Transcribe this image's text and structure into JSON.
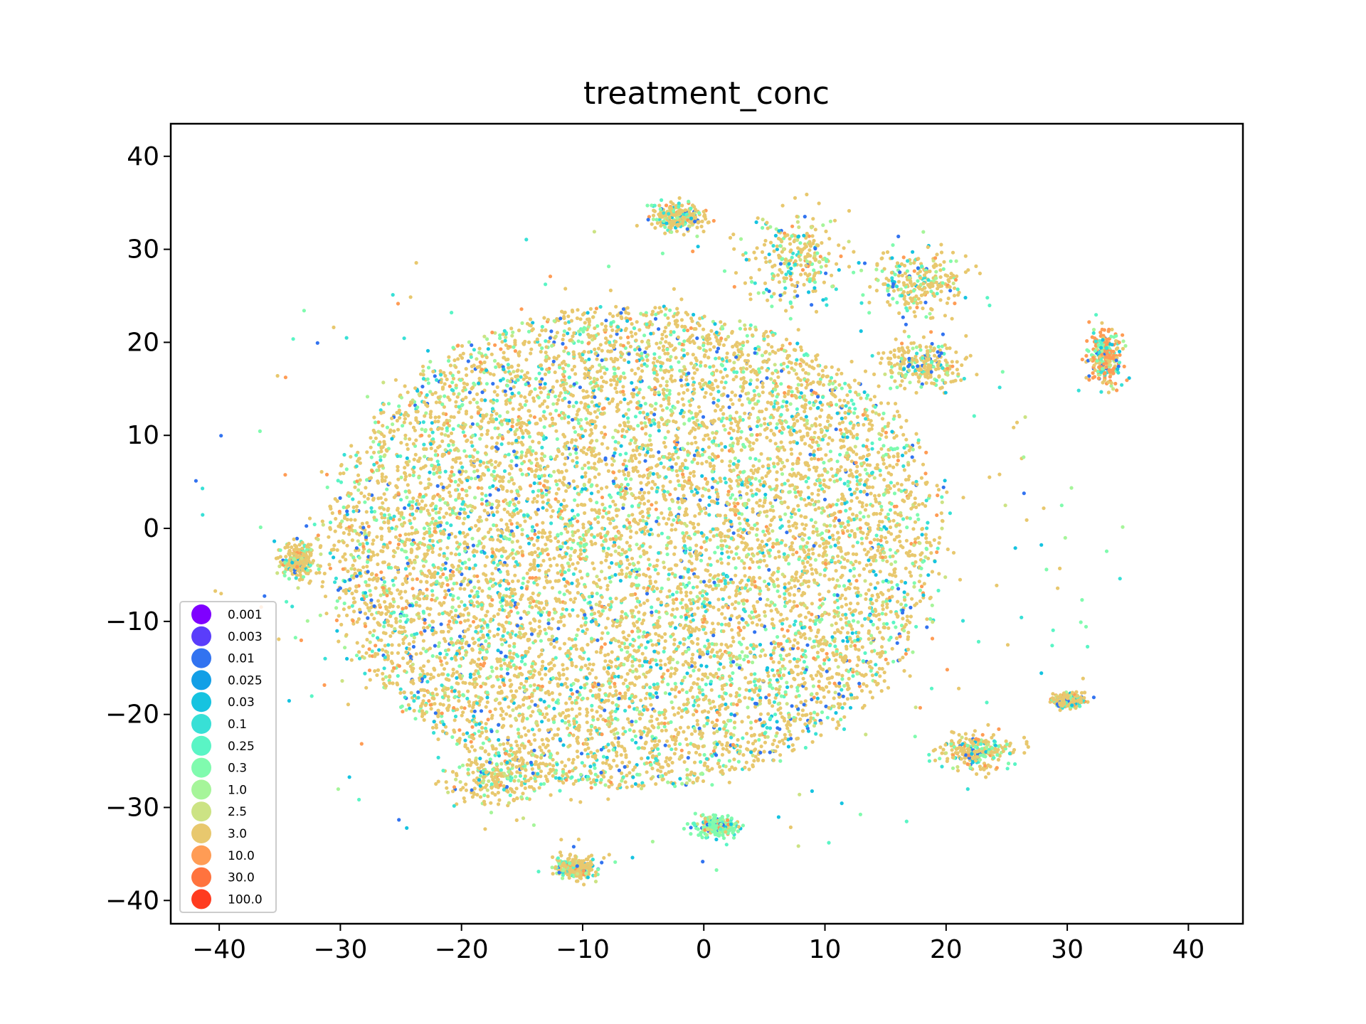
{
  "chart_data": {
    "type": "scatter",
    "title": "treatment_conc",
    "xlabel": "",
    "ylabel": "",
    "xlim": [
      -44,
      44.5
    ],
    "ylim": [
      -42.5,
      43.5
    ],
    "x_ticks": [
      -40,
      -30,
      -20,
      -10,
      0,
      10,
      20,
      30,
      40
    ],
    "y_ticks": [
      -40,
      -30,
      -20,
      -10,
      0,
      10,
      20,
      30,
      40
    ],
    "x_tick_labels": [
      "−40",
      "−30",
      "−20",
      "−10",
      "0",
      "10",
      "20",
      "30",
      "40"
    ],
    "y_tick_labels": [
      "−40",
      "−30",
      "−20",
      "−10",
      "0",
      "10",
      "20",
      "30",
      "40"
    ],
    "grid": false,
    "legend_position": "lower-left",
    "legend": [
      {
        "label": "0.001",
        "color": "#7f00ff"
      },
      {
        "label": "0.003",
        "color": "#5a3dfb"
      },
      {
        "label": "0.01",
        "color": "#3273f0"
      },
      {
        "label": "0.025",
        "color": "#139fe6"
      },
      {
        "label": "0.03",
        "color": "#16c3e0"
      },
      {
        "label": "0.1",
        "color": "#38e0d6"
      },
      {
        "label": "0.25",
        "color": "#5af5c5"
      },
      {
        "label": "0.3",
        "color": "#80fbae"
      },
      {
        "label": "1.0",
        "color": "#a6f59a"
      },
      {
        "label": "2.5",
        "color": "#cce384"
      },
      {
        "label": "3.0",
        "color": "#e8c86e"
      },
      {
        "label": "10.0",
        "color": "#ff9c55"
      },
      {
        "label": "30.0",
        "color": "#ff733e"
      },
      {
        "label": "100.0",
        "color": "#ff3b1f"
      }
    ],
    "clusters": [
      {
        "center": [
          -6,
          -2
        ],
        "spread": [
          11,
          12
        ],
        "dominant": "3.0",
        "note": "main body"
      },
      {
        "center": [
          7.5,
          29
        ],
        "spread": [
          2,
          2.5
        ],
        "dominant": "3.0"
      },
      {
        "center": [
          17.5,
          26.5
        ],
        "spread": [
          2.2,
          1.6
        ],
        "dominant": "3.0"
      },
      {
        "center": [
          -2,
          33.5
        ],
        "spread": [
          1.1,
          0.7
        ],
        "dominant": "3.0"
      },
      {
        "center": [
          33.2,
          18.5
        ],
        "spread": [
          0.7,
          1.6
        ],
        "dominant": "10.0"
      },
      {
        "center": [
          -17,
          -27
        ],
        "spread": [
          2.2,
          1.5
        ],
        "dominant": "3.0"
      },
      {
        "center": [
          22.5,
          -24
        ],
        "spread": [
          1.5,
          0.9
        ],
        "dominant": "3.0"
      },
      {
        "center": [
          18,
          17.5
        ],
        "spread": [
          1.6,
          1.2
        ],
        "dominant": "3.0"
      },
      {
        "center": [
          30,
          -18.5
        ],
        "spread": [
          0.6,
          0.4
        ],
        "dominant": "3.0"
      },
      {
        "center": [
          -10.5,
          -36.5
        ],
        "spread": [
          0.8,
          0.6
        ],
        "dominant": "3.0"
      },
      {
        "center": [
          1,
          -32
        ],
        "spread": [
          0.8,
          0.5
        ],
        "dominant": "0.3"
      },
      {
        "center": [
          -33.5,
          -3.5
        ],
        "spread": [
          0.7,
          0.9
        ],
        "dominant": "3.0"
      }
    ]
  }
}
